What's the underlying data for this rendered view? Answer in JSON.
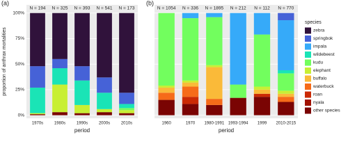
{
  "chart_data": [
    {
      "type": "bar",
      "stacked": true,
      "panel_label": "(a)",
      "y_label": "proportion of anthrax mortalities",
      "x_label": "period",
      "categories": [
        "1970s",
        "1980s",
        "1990s",
        "2000s",
        "2010s"
      ],
      "annotations": [
        "N = 194",
        "N = 325",
        "N = 393",
        "N = 541",
        "N = 173"
      ],
      "ylim": [
        -3,
        108
      ],
      "yticks": [
        {
          "value": 0,
          "label": "0%"
        },
        {
          "value": 25,
          "label": "25%"
        },
        {
          "value": 50,
          "label": "50%"
        },
        {
          "value": 75,
          "label": "75%"
        },
        {
          "value": 100,
          "label": "100%"
        }
      ],
      "grid": true,
      "series": [
        {
          "name": "zebra",
          "color": "#30123b",
          "values": [
            52,
            45,
            52,
            63,
            78
          ]
        },
        {
          "name": "springbok",
          "color": "#4662d7",
          "values": [
            21,
            9,
            14,
            15,
            11
          ]
        },
        {
          "name": "impala",
          "color": "#36aaf9",
          "values": [
            0,
            0,
            0,
            0,
            0
          ]
        },
        {
          "name": "wildebeest",
          "color": "#1ae4b6",
          "values": [
            25,
            16,
            24,
            16,
            4
          ]
        },
        {
          "name": "kudu",
          "color": "#72fe5e",
          "values": [
            0,
            0,
            0,
            0,
            2
          ]
        },
        {
          "name": "elephant",
          "color": "#c8ef34",
          "values": [
            1,
            27,
            8,
            3,
            3
          ]
        },
        {
          "name": "buffalo",
          "color": "#faba39",
          "values": [
            0,
            0,
            0,
            0,
            0
          ]
        },
        {
          "name": "waterbuck",
          "color": "#f66b19",
          "values": [
            0,
            0,
            0,
            0,
            0
          ]
        },
        {
          "name": "roan",
          "color": "#cb2a04",
          "values": [
            0,
            0,
            0,
            0,
            0
          ]
        },
        {
          "name": "nyala",
          "color": "#a11201",
          "values": [
            0,
            0,
            0,
            0,
            0
          ]
        },
        {
          "name": "other species",
          "color": "#7a0403",
          "values": [
            1,
            3,
            2,
            3,
            2
          ]
        }
      ]
    },
    {
      "type": "bar",
      "stacked": true,
      "panel_label": "(b)",
      "x_label": "period",
      "legend": "right",
      "legend_title": "species",
      "categories": [
        "1960",
        "1970",
        "1980-1991",
        "1993-1994",
        "1999",
        "2010-2015"
      ],
      "annotations": [
        "N = 1054",
        "N = 336",
        "N = 1895",
        "N = 212",
        "N = 112",
        "N = 770"
      ],
      "ylim": [
        -3,
        108
      ],
      "yticks": [
        0,
        25,
        50,
        75,
        100
      ],
      "grid": true,
      "series": [
        {
          "name": "zebra",
          "color": "#30123b",
          "values": [
            0,
            0,
            0,
            0,
            0,
            0
          ]
        },
        {
          "name": "springbok",
          "color": "#4662d7",
          "values": [
            0,
            0,
            0,
            0,
            0,
            7
          ]
        },
        {
          "name": "impala",
          "color": "#36aaf9",
          "values": [
            0,
            5,
            4,
            70,
            21,
            49
          ]
        },
        {
          "name": "wildebeest",
          "color": "#1ae4b6",
          "values": [
            0,
            0,
            0,
            0,
            0,
            3
          ]
        },
        {
          "name": "kudu",
          "color": "#72fe5e",
          "values": [
            71,
            61,
            47,
            13,
            51,
            17
          ]
        },
        {
          "name": "elephant",
          "color": "#c8ef34",
          "values": [
            2,
            2,
            2,
            0,
            3,
            3
          ]
        },
        {
          "name": "buffalo",
          "color": "#faba39",
          "values": [
            5,
            4,
            31,
            0,
            4,
            3
          ]
        },
        {
          "name": "waterbuck",
          "color": "#f66b19",
          "values": [
            7,
            10,
            6,
            0,
            0,
            5
          ]
        },
        {
          "name": "roan",
          "color": "#cb2a04",
          "values": [
            0,
            7,
            0,
            0,
            3,
            0
          ]
        },
        {
          "name": "nyala",
          "color": "#a11201",
          "values": [
            0,
            0,
            0,
            0,
            0,
            0
          ]
        },
        {
          "name": "other species",
          "color": "#7a0403",
          "values": [
            15,
            11,
            10,
            17,
            18,
            13
          ]
        }
      ]
    }
  ]
}
